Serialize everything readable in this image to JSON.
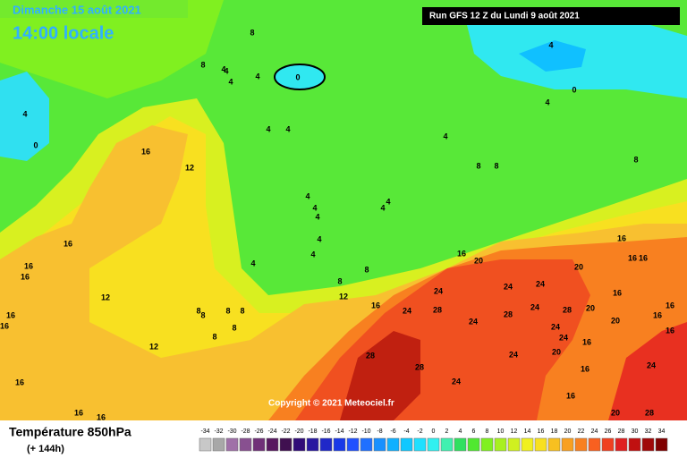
{
  "header": {
    "date": "Dimanche 15 août 2021",
    "time": "14:00 locale",
    "run": "Run GFS 12 Z du Lundi 9 août 2021",
    "copyright": "Copyright © 2021 Meteociel.fr"
  },
  "legend": {
    "title": "Température 850hPa",
    "lead": "(+ 144h)",
    "values": [
      -34,
      -32,
      -30,
      -28,
      -26,
      -24,
      -22,
      -20,
      -18,
      -16,
      -14,
      -12,
      -10,
      -8,
      -6,
      -4,
      -2,
      0,
      2,
      4,
      6,
      8,
      10,
      12,
      14,
      16,
      18,
      20,
      22,
      24,
      26,
      28,
      30,
      32,
      34
    ],
    "colors": [
      "#c8c8c8",
      "#a8a8a8",
      "#a070a8",
      "#885090",
      "#703078",
      "#581860",
      "#401050",
      "#300c78",
      "#2818a0",
      "#2028c8",
      "#1838e8",
      "#2050ff",
      "#2070ff",
      "#1890ff",
      "#10b0ff",
      "#10c8ff",
      "#20e0ff",
      "#30f0f0",
      "#40f0b0",
      "#30e060",
      "#50e830",
      "#80f020",
      "#a8f020",
      "#d0f020",
      "#f0f020",
      "#f8e020",
      "#f8c020",
      "#f8a020",
      "#f88020",
      "#f86020",
      "#f04020",
      "#e02020",
      "#c01010",
      "#a00808",
      "#800000"
    ]
  },
  "contour_labels": [
    16,
    12,
    16,
    16,
    16,
    12,
    16,
    16,
    12,
    16,
    16,
    16,
    8,
    8,
    8,
    8,
    8,
    8,
    4,
    4,
    4,
    4,
    4,
    4,
    8,
    8,
    12,
    16,
    24,
    24,
    28,
    16,
    20,
    20,
    24,
    24,
    24,
    24,
    28,
    28,
    28,
    24,
    24,
    24,
    24,
    28,
    16,
    20,
    16,
    20,
    20,
    16,
    16,
    16,
    16,
    16,
    16,
    16,
    24,
    28,
    20,
    16,
    4,
    0,
    4,
    4,
    8,
    8,
    8,
    0,
    0,
    4,
    4,
    4,
    8,
    8,
    4,
    4,
    4,
    4,
    4,
    4
  ]
}
